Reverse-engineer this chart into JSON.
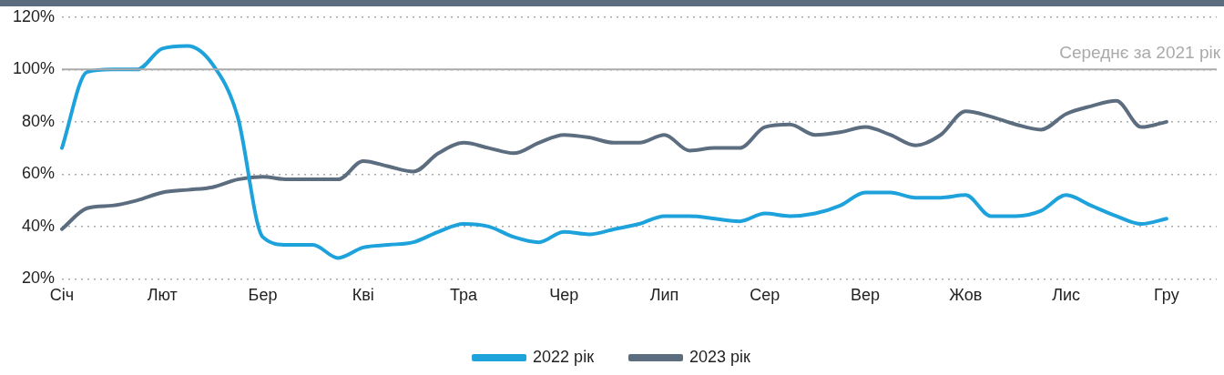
{
  "chart_data": {
    "type": "line",
    "categories": [
      "Січ",
      null,
      null,
      null,
      "Лют",
      null,
      null,
      null,
      "Бер",
      null,
      null,
      null,
      "Кві",
      null,
      null,
      null,
      "Тра",
      null,
      null,
      null,
      "Чер",
      null,
      null,
      null,
      "Лип",
      null,
      null,
      null,
      "Сер",
      null,
      null,
      null,
      "Вер",
      null,
      null,
      null,
      "Жов",
      null,
      null,
      null,
      "Лис",
      null,
      null,
      null,
      "Гру",
      null,
      null
    ],
    "ylim": [
      20,
      120
    ],
    "yticks": [
      {
        "value": 20,
        "label": "20%"
      },
      {
        "value": 40,
        "label": "40%"
      },
      {
        "value": 60,
        "label": "60%"
      },
      {
        "value": 80,
        "label": "80%"
      },
      {
        "value": 100,
        "label": "100%"
      },
      {
        "value": 120,
        "label": "120%"
      }
    ],
    "series": [
      {
        "name": "2022 рік",
        "color": "#1ea2dc",
        "values": [
          70,
          99,
          100,
          100,
          108,
          109,
          102,
          82,
          36,
          33,
          33,
          28,
          32,
          33,
          34,
          38,
          41,
          40,
          36,
          34,
          38,
          37,
          39,
          41,
          44,
          44,
          43,
          42,
          45,
          44,
          45,
          48,
          53,
          53,
          51,
          51,
          52,
          44,
          44,
          46,
          52,
          48,
          44,
          41,
          43,
          null,
          null
        ]
      },
      {
        "name": "2023 рік",
        "color": "#5d6d80",
        "values": [
          39,
          47,
          48,
          50,
          53,
          54,
          55,
          58,
          59,
          58,
          58,
          58,
          65,
          63,
          61,
          68,
          72,
          70,
          68,
          72,
          75,
          74,
          72,
          72,
          75,
          69,
          70,
          70,
          78,
          79,
          75,
          76,
          78,
          75,
          71,
          75,
          84,
          82,
          79,
          77,
          83,
          86,
          88,
          78,
          80,
          null,
          null
        ]
      }
    ],
    "ref_lines": [
      {
        "axis": "y",
        "value": 100,
        "label": "Середнє за 2021 рік",
        "color": "#aaaaaa",
        "line_style": "solid"
      }
    ],
    "grid": "y",
    "legend": "bottom",
    "marker": "none",
    "line_style": "solid"
  }
}
